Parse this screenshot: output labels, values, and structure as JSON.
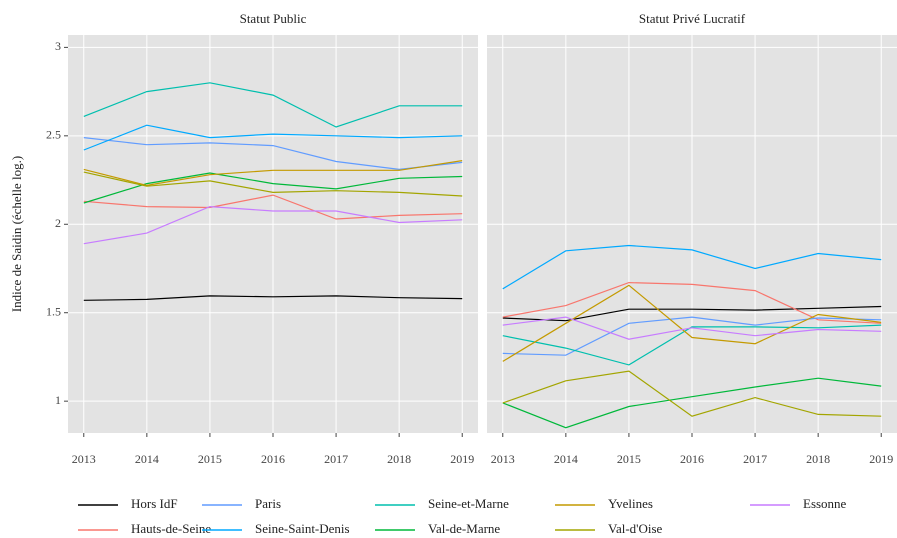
{
  "y_axis_label": "Indice de Saidin (échelle log.)",
  "chart_data": [
    {
      "type": "line",
      "title": "Statut Public",
      "x": [
        2013,
        2014,
        2015,
        2016,
        2017,
        2018,
        2019
      ],
      "xlim": [
        2012.75,
        2019.25
      ],
      "xticks": [
        2013,
        2014,
        2015,
        2016,
        2017,
        2018,
        2019
      ],
      "ylim": [
        0.82,
        3.07
      ],
      "yticks": [
        1,
        1.5,
        2,
        2.5,
        3
      ],
      "grid": true,
      "series": [
        {
          "name": "Hors IdF",
          "color": "#000000",
          "values": [
            1.57,
            1.575,
            1.595,
            1.59,
            1.595,
            1.585,
            1.58
          ]
        },
        {
          "name": "Hauts-de-Seine",
          "color": "#F8766D",
          "values": [
            2.13,
            2.1,
            2.095,
            2.165,
            2.03,
            2.05,
            2.06
          ]
        },
        {
          "name": "Paris",
          "color": "#619CFF",
          "values": [
            2.49,
            2.45,
            2.46,
            2.445,
            2.355,
            2.31,
            2.35
          ]
        },
        {
          "name": "Seine-Saint-Denis",
          "color": "#00A9FF",
          "values": [
            2.42,
            2.56,
            2.49,
            2.51,
            2.5,
            2.49,
            2.5
          ]
        },
        {
          "name": "Seine-et-Marne",
          "color": "#00BFAE",
          "values": [
            2.61,
            2.75,
            2.8,
            2.73,
            2.55,
            2.67,
            2.67
          ]
        },
        {
          "name": "Val-de-Marne",
          "color": "#00B83A",
          "values": [
            2.12,
            2.23,
            2.29,
            2.23,
            2.2,
            2.26,
            2.27
          ]
        },
        {
          "name": "Yvelines",
          "color": "#C49A00",
          "values": [
            2.31,
            2.22,
            2.28,
            2.305,
            2.305,
            2.305,
            2.36
          ]
        },
        {
          "name": "Val-d'Oise",
          "color": "#A3A500",
          "values": [
            2.295,
            2.215,
            2.245,
            2.18,
            2.19,
            2.18,
            2.16
          ]
        },
        {
          "name": "Essonne",
          "color": "#C77CFF",
          "values": [
            1.89,
            1.95,
            2.1,
            2.075,
            2.075,
            2.01,
            2.025
          ]
        }
      ]
    },
    {
      "type": "line",
      "title": "Statut Privé Lucratif",
      "x": [
        2013,
        2014,
        2015,
        2016,
        2017,
        2018,
        2019
      ],
      "xlim": [
        2012.75,
        2019.25
      ],
      "xticks": [
        2013,
        2014,
        2015,
        2016,
        2017,
        2018,
        2019
      ],
      "ylim": [
        0.82,
        3.07
      ],
      "yticks": [
        1,
        1.5,
        2,
        2.5,
        3
      ],
      "grid": true,
      "series": [
        {
          "name": "Hors IdF",
          "color": "#000000",
          "values": [
            1.47,
            1.455,
            1.52,
            1.52,
            1.515,
            1.525,
            1.535
          ]
        },
        {
          "name": "Hauts-de-Seine",
          "color": "#F8766D",
          "values": [
            1.475,
            1.54,
            1.67,
            1.66,
            1.625,
            1.46,
            1.44
          ]
        },
        {
          "name": "Paris",
          "color": "#619CFF",
          "values": [
            1.27,
            1.26,
            1.44,
            1.475,
            1.43,
            1.47,
            1.46
          ]
        },
        {
          "name": "Seine-Saint-Denis",
          "color": "#00A9FF",
          "values": [
            1.635,
            1.85,
            1.88,
            1.855,
            1.75,
            1.835,
            1.8
          ]
        },
        {
          "name": "Seine-et-Marne",
          "color": "#00BFAE",
          "values": [
            1.37,
            1.3,
            1.205,
            1.42,
            1.42,
            1.415,
            1.43
          ]
        },
        {
          "name": "Val-de-Marne",
          "color": "#00B83A",
          "values": [
            0.99,
            0.85,
            0.97,
            1.025,
            1.08,
            1.13,
            1.085
          ]
        },
        {
          "name": "Yvelines",
          "color": "#C49A00",
          "values": [
            1.225,
            1.44,
            1.655,
            1.36,
            1.325,
            1.49,
            1.445
          ]
        },
        {
          "name": "Val-d'Oise",
          "color": "#A3A500",
          "values": [
            0.99,
            1.115,
            1.17,
            0.915,
            1.02,
            0.925,
            0.915
          ]
        },
        {
          "name": "Essonne",
          "color": "#C77CFF",
          "values": [
            1.43,
            1.475,
            1.35,
            1.415,
            1.37,
            1.405,
            1.395
          ]
        }
      ]
    }
  ]
}
